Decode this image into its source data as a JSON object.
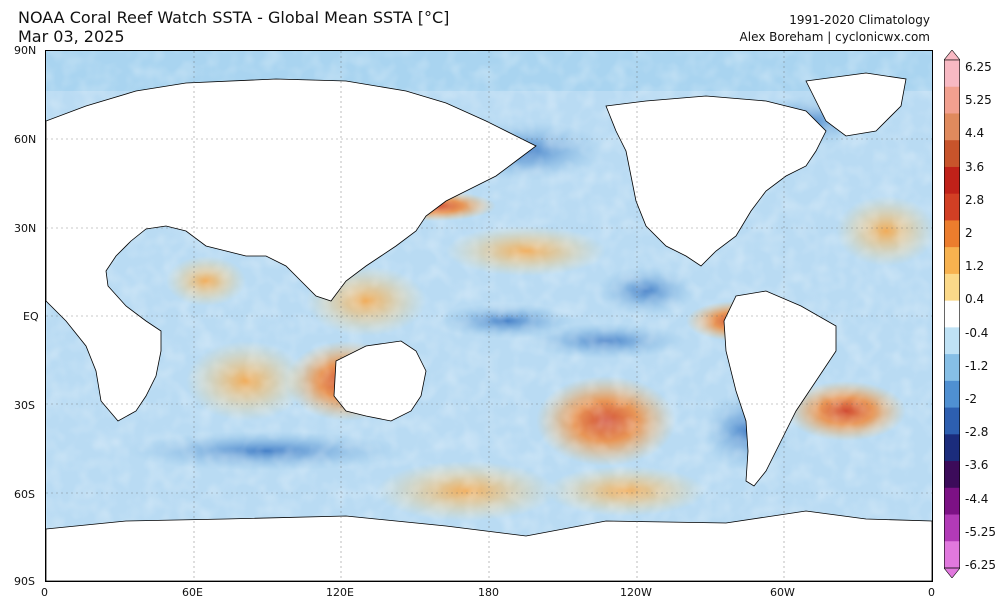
{
  "header": {
    "title": "NOAA Coral Reef Watch SSTA - Global Mean SSTA [°C]",
    "date": "Mar 03, 2025",
    "climatology": "1991-2020 Climatology",
    "credit": "Alex Boreham | cyclonicwx.com"
  },
  "axes": {
    "lat_labels": [
      "90N",
      "60N",
      "30N",
      "EQ",
      "30S",
      "60S",
      "90S"
    ],
    "lon_labels": [
      "0",
      "60E",
      "120E",
      "180",
      "120W",
      "60W",
      "0"
    ]
  },
  "colorbar": {
    "labels": [
      "6.25",
      "5.25",
      "4.4",
      "3.6",
      "2.8",
      "2",
      "1.2",
      "0.4",
      "-0.4",
      "-1.2",
      "-2",
      "-2.8",
      "-3.6",
      "-4.4",
      "-5.25",
      "-6.25"
    ],
    "colors": [
      "#f8b9c3",
      "#f2a08f",
      "#e08a5d",
      "#c8542b",
      "#c02119",
      "#d23f24",
      "#ec7d2d",
      "#f7b24f",
      "#fbd989",
      "#ffffff",
      "#bfe2f5",
      "#86bfe6",
      "#4f90d2",
      "#2d5fb0",
      "#1b2c7c",
      "#3c0b5a",
      "#7c1185",
      "#b23ab7",
      "#e178de"
    ],
    "accent_land": "#ffffff",
    "accent_ice": "#a9d4f0"
  }
}
